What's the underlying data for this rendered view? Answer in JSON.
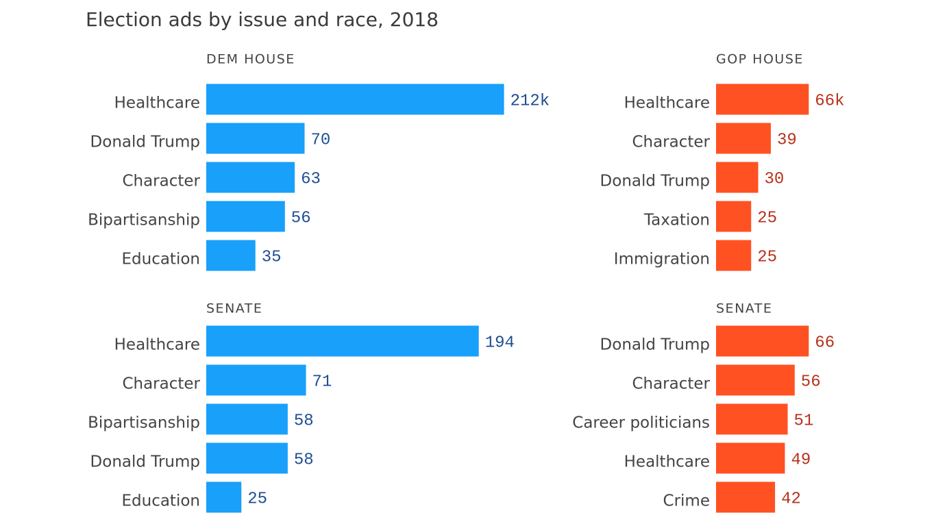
{
  "title": "Election ads by issue and race, 2018",
  "chart_data": [
    {
      "type": "bar",
      "title": "DEM HOUSE",
      "color": "#18a0fb",
      "label_color": "#1f4e94",
      "categories": [
        "Healthcare",
        "Donald Trump",
        "Character",
        "Bipartisanship",
        "Education"
      ],
      "values": [
        212,
        70,
        63,
        56,
        35
      ],
      "value_labels": [
        "212k",
        "70",
        "63",
        "56",
        "35"
      ]
    },
    {
      "type": "bar",
      "title": "GOP HOUSE",
      "color": "#ff5122",
      "label_color": "#b8311c",
      "categories": [
        "Healthcare",
        "Character",
        "Donald Trump",
        "Taxation",
        "Immigration"
      ],
      "values": [
        66,
        39,
        30,
        25,
        25
      ],
      "value_labels": [
        "66k",
        "39",
        "30",
        "25",
        "25"
      ]
    },
    {
      "type": "bar",
      "title": "SENATE",
      "color": "#18a0fb",
      "label_color": "#1f4e94",
      "categories": [
        "Healthcare",
        "Character",
        "Bipartisanship",
        "Donald Trump",
        "Education"
      ],
      "values": [
        194,
        71,
        58,
        58,
        25
      ]
    },
    {
      "type": "bar",
      "title": "SENATE",
      "color": "#ff5122",
      "label_color": "#b8311c",
      "categories": [
        "Donald Trump",
        "Character",
        "Career politicians",
        "Healthcare",
        "Crime"
      ],
      "values": [
        66,
        56,
        51,
        49,
        42
      ]
    }
  ]
}
